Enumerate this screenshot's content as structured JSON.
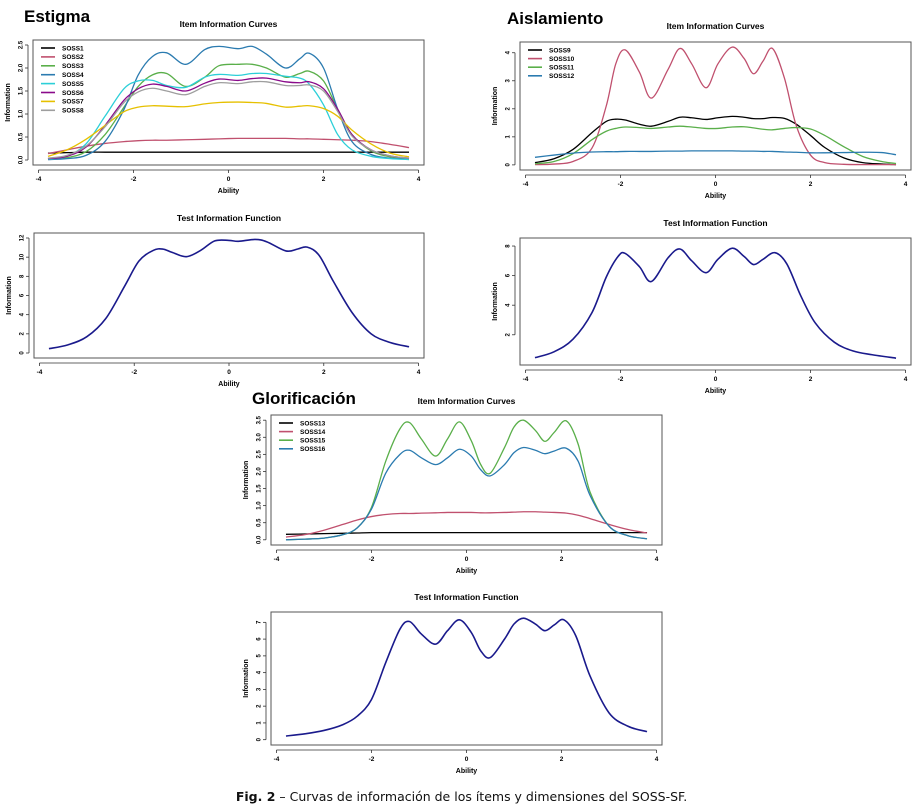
{
  "figure": {
    "caption_label": "Fig. 2",
    "caption_text": " – Curvas de información de los ítems y dimensiones del SOSS-SF."
  },
  "panels": [
    {
      "name": "Estigma"
    },
    {
      "name": "Aislamiento"
    },
    {
      "name": "Glorificación"
    }
  ],
  "chart_data": [
    {
      "id": "estigma-iic",
      "panel": "Estigma",
      "type": "line",
      "title": "Item Information Curves",
      "xlabel": "Ability",
      "ylabel": "Information",
      "xlim": [
        -4,
        4
      ],
      "ylim": [
        0,
        2.5
      ],
      "xticks": [
        -4,
        -2,
        0,
        2,
        4
      ],
      "yticks": [
        0.0,
        0.5,
        1.0,
        1.5,
        2.0,
        2.5
      ],
      "ytick_labels": [
        "0.0",
        "0.5",
        "1.0",
        "1.5",
        "2.0",
        "2.5"
      ],
      "legend": "top-left",
      "x": [
        -3.8,
        -3.4,
        -3.0,
        -2.6,
        -2.2,
        -1.9,
        -1.6,
        -1.3,
        -0.9,
        -0.5,
        -0.2,
        0.2,
        0.5,
        0.8,
        1.2,
        1.5,
        1.7,
        2.0,
        2.3,
        2.6,
        3.0,
        3.4,
        3.8
      ],
      "series": [
        {
          "name": "SOSS1",
          "color": "#000000",
          "values": [
            0.15,
            0.16,
            0.17,
            0.17,
            0.17,
            0.17,
            0.17,
            0.17,
            0.17,
            0.17,
            0.17,
            0.17,
            0.17,
            0.17,
            0.17,
            0.17,
            0.17,
            0.17,
            0.17,
            0.17,
            0.17,
            0.17,
            0.17
          ]
        },
        {
          "name": "SOSS2",
          "color": "#c0506e",
          "values": [
            0.14,
            0.22,
            0.3,
            0.36,
            0.4,
            0.42,
            0.43,
            0.43,
            0.44,
            0.45,
            0.46,
            0.47,
            0.47,
            0.47,
            0.47,
            0.46,
            0.46,
            0.45,
            0.44,
            0.43,
            0.4,
            0.34,
            0.27
          ]
        },
        {
          "name": "SOSS3",
          "color": "#5aaf4a",
          "values": [
            0.02,
            0.05,
            0.18,
            0.55,
            1.15,
            1.6,
            1.85,
            1.88,
            1.6,
            1.8,
            2.05,
            2.08,
            2.08,
            2.0,
            1.8,
            1.88,
            1.93,
            1.72,
            1.1,
            0.55,
            0.2,
            0.07,
            0.03
          ]
        },
        {
          "name": "SOSS4",
          "color": "#2b7bb0",
          "values": [
            0.01,
            0.03,
            0.1,
            0.4,
            1.1,
            1.85,
            2.25,
            2.33,
            2.08,
            2.4,
            2.47,
            2.42,
            2.47,
            2.3,
            2.0,
            2.2,
            2.32,
            2.0,
            1.1,
            0.4,
            0.12,
            0.04,
            0.02
          ]
        },
        {
          "name": "SOSS5",
          "color": "#2ccfd8",
          "values": [
            0.02,
            0.08,
            0.35,
            0.95,
            1.55,
            1.72,
            1.73,
            1.62,
            1.58,
            1.8,
            1.86,
            1.84,
            1.88,
            1.88,
            1.82,
            1.78,
            1.65,
            1.2,
            0.55,
            0.22,
            0.08,
            0.03,
            0.01
          ]
        },
        {
          "name": "SOSS6",
          "color": "#8a0a8a",
          "values": [
            0.03,
            0.08,
            0.28,
            0.75,
            1.3,
            1.55,
            1.65,
            1.6,
            1.5,
            1.67,
            1.76,
            1.73,
            1.77,
            1.78,
            1.7,
            1.68,
            1.7,
            1.55,
            1.1,
            0.55,
            0.22,
            0.09,
            0.04
          ]
        },
        {
          "name": "SOSS7",
          "color": "#e6c000",
          "values": [
            0.08,
            0.22,
            0.45,
            0.75,
            1.05,
            1.15,
            1.18,
            1.17,
            1.16,
            1.22,
            1.25,
            1.26,
            1.25,
            1.23,
            1.15,
            1.17,
            1.18,
            1.12,
            0.95,
            0.65,
            0.35,
            0.15,
            0.07
          ]
        },
        {
          "name": "SOSS8",
          "color": "#9e9e9e",
          "values": [
            0.04,
            0.1,
            0.3,
            0.72,
            1.25,
            1.48,
            1.56,
            1.5,
            1.42,
            1.6,
            1.68,
            1.66,
            1.7,
            1.7,
            1.62,
            1.62,
            1.63,
            1.5,
            1.05,
            0.52,
            0.22,
            0.09,
            0.04
          ]
        }
      ]
    },
    {
      "id": "estigma-tif",
      "panel": "Estigma",
      "type": "line",
      "title": "Test Information Function",
      "xlabel": "Ability",
      "ylabel": "Information",
      "xlim": [
        -4,
        4
      ],
      "ylim": [
        0,
        12
      ],
      "xticks": [
        -4,
        -2,
        0,
        2,
        4
      ],
      "yticks": [
        0,
        2,
        4,
        6,
        8,
        10,
        12
      ],
      "ytick_labels": [
        "0",
        "2",
        "4",
        "6",
        "8",
        "10",
        "12"
      ],
      "x": [
        -3.8,
        -3.4,
        -3.0,
        -2.6,
        -2.2,
        -1.9,
        -1.6,
        -1.4,
        -1.2,
        -0.9,
        -0.6,
        -0.3,
        0.0,
        0.2,
        0.55,
        0.8,
        1.2,
        1.45,
        1.65,
        1.9,
        2.2,
        2.6,
        3.0,
        3.4,
        3.8
      ],
      "series": [
        {
          "name": "Test Information",
          "color": "#1a1a8c",
          "values": [
            0.45,
            0.85,
            1.7,
            3.6,
            7.0,
            9.6,
            10.7,
            10.85,
            10.5,
            10.05,
            10.7,
            11.7,
            11.75,
            11.65,
            11.85,
            11.6,
            10.65,
            10.85,
            11.05,
            10.2,
            7.5,
            4.2,
            2.0,
            1.1,
            0.65
          ]
        }
      ]
    },
    {
      "id": "aislamiento-iic",
      "panel": "Aislamiento",
      "type": "line",
      "title": "Item Information Curves",
      "xlabel": "Ability",
      "ylabel": "Information",
      "xlim": [
        -4,
        4
      ],
      "ylim": [
        0,
        4.2
      ],
      "xticks": [
        -4,
        -2,
        0,
        2,
        4
      ],
      "yticks": [
        0,
        1,
        2,
        3,
        4
      ],
      "ytick_labels": [
        "0",
        "1",
        "2",
        "3",
        "4"
      ],
      "legend": "top-left",
      "x": [
        -3.8,
        -3.4,
        -3.0,
        -2.6,
        -2.3,
        -2.1,
        -1.9,
        -1.6,
        -1.35,
        -1.0,
        -0.75,
        -0.5,
        -0.2,
        0.05,
        0.35,
        0.6,
        0.8,
        1.0,
        1.2,
        1.45,
        1.7,
        2.0,
        2.3,
        2.7,
        3.1,
        3.5,
        3.8
      ],
      "series": [
        {
          "name": "SOSS9",
          "color": "#000000",
          "values": [
            0.08,
            0.22,
            0.55,
            1.15,
            1.55,
            1.63,
            1.6,
            1.45,
            1.38,
            1.55,
            1.7,
            1.68,
            1.62,
            1.68,
            1.73,
            1.7,
            1.65,
            1.65,
            1.69,
            1.66,
            1.45,
            1.05,
            0.62,
            0.25,
            0.08,
            0.03,
            0.01
          ]
        },
        {
          "name": "SOSS10",
          "color": "#c0506e",
          "values": [
            0.01,
            0.03,
            0.12,
            0.6,
            2.1,
            3.6,
            4.1,
            3.3,
            2.38,
            3.4,
            4.15,
            3.6,
            2.75,
            3.6,
            4.2,
            3.8,
            3.25,
            3.7,
            4.15,
            3.1,
            1.4,
            0.35,
            0.08,
            0.02,
            0.01,
            0.01,
            0.01
          ]
        },
        {
          "name": "SOSS11",
          "color": "#5aaf4a",
          "values": [
            0.04,
            0.12,
            0.4,
            0.9,
            1.2,
            1.3,
            1.35,
            1.33,
            1.3,
            1.35,
            1.38,
            1.35,
            1.3,
            1.3,
            1.35,
            1.36,
            1.32,
            1.27,
            1.25,
            1.3,
            1.33,
            1.28,
            1.05,
            0.65,
            0.3,
            0.12,
            0.05
          ]
        },
        {
          "name": "SOSS12",
          "color": "#2b7bb0",
          "values": [
            0.27,
            0.35,
            0.42,
            0.46,
            0.47,
            0.47,
            0.48,
            0.48,
            0.48,
            0.49,
            0.49,
            0.5,
            0.5,
            0.5,
            0.5,
            0.49,
            0.49,
            0.48,
            0.48,
            0.46,
            0.45,
            0.43,
            0.43,
            0.44,
            0.45,
            0.44,
            0.36
          ]
        }
      ]
    },
    {
      "id": "aislamiento-tif",
      "panel": "Aislamiento",
      "type": "line",
      "title": "Test Information Function",
      "xlabel": "Ability",
      "ylabel": "Information",
      "xlim": [
        -4,
        4
      ],
      "ylim": [
        0.3,
        8.2
      ],
      "xticks": [
        -4,
        -2,
        0,
        2,
        4
      ],
      "yticks": [
        2,
        4,
        6,
        8
      ],
      "ytick_labels": [
        "2",
        "4",
        "6",
        "8"
      ],
      "x": [
        -3.8,
        -3.4,
        -3.0,
        -2.6,
        -2.3,
        -2.05,
        -1.9,
        -1.6,
        -1.35,
        -1.0,
        -0.75,
        -0.5,
        -0.2,
        0.05,
        0.35,
        0.6,
        0.8,
        1.0,
        1.25,
        1.5,
        1.8,
        2.1,
        2.5,
        2.9,
        3.3,
        3.8
      ],
      "series": [
        {
          "name": "Test Information",
          "color": "#1a1a8c",
          "values": [
            0.45,
            0.85,
            1.7,
            3.5,
            5.9,
            7.3,
            7.5,
            6.6,
            5.6,
            7.2,
            7.8,
            7.0,
            6.2,
            7.1,
            7.85,
            7.3,
            6.75,
            7.1,
            7.55,
            6.8,
            4.6,
            2.8,
            1.5,
            0.9,
            0.65,
            0.42
          ]
        }
      ]
    },
    {
      "id": "glorificacion-iic",
      "panel": "Glorificación",
      "type": "line",
      "title": "Item Information Curves",
      "xlabel": "Ability",
      "ylabel": "Information",
      "xlim": [
        -4,
        4
      ],
      "ylim": [
        0,
        3.5
      ],
      "xticks": [
        -4,
        -2,
        0,
        2,
        4
      ],
      "yticks": [
        0.0,
        0.5,
        1.0,
        1.5,
        2.0,
        2.5,
        3.0,
        3.5
      ],
      "ytick_labels": [
        "0.0",
        "0.5",
        "1.0",
        "1.5",
        "2.0",
        "2.5",
        "3.0",
        "3.5"
      ],
      "legend": "top-left",
      "x": [
        -3.8,
        -3.4,
        -3.0,
        -2.6,
        -2.3,
        -2.0,
        -1.7,
        -1.4,
        -1.2,
        -0.95,
        -0.65,
        -0.4,
        -0.15,
        0.1,
        0.3,
        0.5,
        0.8,
        1.0,
        1.2,
        1.45,
        1.65,
        1.85,
        2.1,
        2.35,
        2.6,
        3.0,
        3.4,
        3.8
      ],
      "series": [
        {
          "name": "SOSS13",
          "color": "#000000",
          "values": [
            0.16,
            0.17,
            0.18,
            0.19,
            0.2,
            0.21,
            0.21,
            0.21,
            0.21,
            0.21,
            0.21,
            0.21,
            0.21,
            0.21,
            0.21,
            0.21,
            0.21,
            0.21,
            0.21,
            0.21,
            0.21,
            0.21,
            0.21,
            0.21,
            0.21,
            0.21,
            0.21,
            0.21
          ]
        },
        {
          "name": "SOSS14",
          "color": "#c0506e",
          "values": [
            0.08,
            0.15,
            0.28,
            0.45,
            0.58,
            0.68,
            0.74,
            0.77,
            0.77,
            0.78,
            0.79,
            0.8,
            0.8,
            0.8,
            0.79,
            0.79,
            0.8,
            0.81,
            0.82,
            0.82,
            0.81,
            0.8,
            0.78,
            0.72,
            0.62,
            0.45,
            0.3,
            0.2
          ]
        },
        {
          "name": "SOSS15",
          "color": "#5aaf4a",
          "values": [
            0.0,
            0.02,
            0.05,
            0.15,
            0.35,
            0.95,
            2.3,
            3.25,
            3.43,
            2.95,
            2.45,
            2.95,
            3.45,
            2.9,
            2.2,
            1.95,
            2.7,
            3.3,
            3.5,
            3.2,
            2.88,
            3.15,
            3.48,
            2.8,
            1.4,
            0.4,
            0.12,
            0.03
          ]
        },
        {
          "name": "SOSS16",
          "color": "#2b7bb0",
          "values": [
            0.0,
            0.02,
            0.05,
            0.15,
            0.35,
            0.9,
            1.95,
            2.5,
            2.62,
            2.4,
            2.2,
            2.4,
            2.65,
            2.45,
            2.05,
            1.87,
            2.2,
            2.55,
            2.7,
            2.62,
            2.52,
            2.6,
            2.68,
            2.3,
            1.3,
            0.4,
            0.12,
            0.03
          ]
        }
      ]
    },
    {
      "id": "glorificacion-tif",
      "panel": "Glorificación",
      "type": "line",
      "title": "Test Information Function",
      "xlabel": "Ability",
      "ylabel": "Information",
      "xlim": [
        -4,
        4
      ],
      "ylim": [
        0,
        7.3
      ],
      "xticks": [
        -4,
        -2,
        0,
        2,
        4
      ],
      "yticks": [
        0,
        1,
        2,
        3,
        4,
        5,
        6,
        7
      ],
      "ytick_labels": [
        "0",
        "1",
        "2",
        "3",
        "4",
        "5",
        "6",
        "7"
      ],
      "x": [
        -3.8,
        -3.4,
        -3.0,
        -2.6,
        -2.3,
        -2.0,
        -1.7,
        -1.4,
        -1.2,
        -0.95,
        -0.65,
        -0.4,
        -0.15,
        0.1,
        0.3,
        0.5,
        0.8,
        1.0,
        1.2,
        1.45,
        1.65,
        1.85,
        2.05,
        2.3,
        2.6,
        3.0,
        3.4,
        3.8
      ],
      "series": [
        {
          "name": "Test Information",
          "color": "#1a1a8c",
          "values": [
            0.22,
            0.35,
            0.55,
            0.9,
            1.4,
            2.4,
            4.6,
            6.6,
            7.05,
            6.3,
            5.7,
            6.5,
            7.15,
            6.4,
            5.3,
            4.9,
            6.0,
            6.9,
            7.25,
            6.9,
            6.5,
            6.85,
            7.15,
            6.2,
            3.8,
            1.6,
            0.8,
            0.48
          ]
        }
      ]
    }
  ]
}
